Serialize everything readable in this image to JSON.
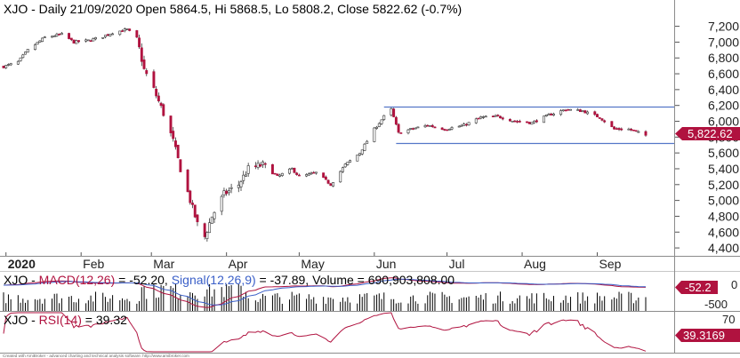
{
  "header": {
    "price_title": "XJO - Daily 21/09/2020 Open 5864.5, Hi 5868.5, Lo 5808.2, Close 5822.62 (-0.7%)",
    "macd_prefix": "XJO - ",
    "macd_label": "MACD(12,26)",
    "macd_value": " = -52.20, ",
    "signal_label": "Signal(12,26,9)",
    "signal_value": " = -37.89, Volume = 690,903,808.00",
    "rsi_prefix": "XJO - ",
    "rsi_label": "RSI(14)",
    "rsi_value": " = 39.32",
    "footer": "Created with AmiBroker - advanced charting and technical analysis software. http://www.amibroker.com"
  },
  "colors": {
    "down_candle": "#b0123f",
    "up_candle": "#ffffff",
    "wick": "#333333",
    "channel_line": "#5577c8",
    "price_badge": "#b0123f",
    "macd_line": "#b0123f",
    "signal_line": "#3a5fc8",
    "rsi_line": "#b0123f",
    "volume_bar": "#000000"
  },
  "chart_data": [
    {
      "type": "candlestick",
      "title": "XJO - Daily 21/09/2020 Open 5864.5, Hi 5868.5, Lo 5808.2, Close 5822.62 (-0.7%)",
      "x_labels": [
        "2020",
        "Feb",
        "Mar",
        "Apr",
        "May",
        "Jun",
        "Jul",
        "Aug",
        "Sep"
      ],
      "y_ticks": [
        "7,200",
        "7,000",
        "6,800",
        "6,600",
        "6,400",
        "6,200",
        "6,000",
        "5,800",
        "5,600",
        "5,400",
        "5,200",
        "5,000",
        "4,800",
        "4,600",
        "4,400"
      ],
      "y_tick_values": [
        7200,
        7000,
        6800,
        6600,
        6400,
        6200,
        6000,
        5800,
        5600,
        5400,
        5200,
        5000,
        4800,
        4600,
        4400
      ],
      "ylim": [
        4300,
        7330
      ],
      "last_price_label": "5,822.62",
      "last_close": 5822.62,
      "channel": {
        "upper": 6180,
        "lower": 5720,
        "start": "Jun",
        "end": "Sep"
      },
      "close_path": [
        [
          "2019-12-31",
          6690
        ],
        [
          "2020-01-06",
          6750
        ],
        [
          "2020-01-10",
          6900
        ],
        [
          "2020-01-17",
          7060
        ],
        [
          "2020-01-24",
          7100
        ],
        [
          "2020-01-29",
          7000
        ],
        [
          "2020-02-04",
          7020
        ],
        [
          "2020-02-10",
          7070
        ],
        [
          "2020-02-14",
          7120
        ],
        [
          "2020-02-20",
          7160
        ],
        [
          "2020-02-24",
          7050
        ],
        [
          "2020-02-27",
          6650
        ],
        [
          "2020-03-02",
          6400
        ],
        [
          "2020-03-06",
          6100
        ],
        [
          "2020-03-10",
          5750
        ],
        [
          "2020-03-13",
          5400
        ],
        [
          "2020-03-17",
          5000
        ],
        [
          "2020-03-20",
          4700
        ],
        [
          "2020-03-23",
          4540
        ],
        [
          "2020-03-26",
          4800
        ],
        [
          "2020-03-31",
          5080
        ],
        [
          "2020-04-06",
          5200
        ],
        [
          "2020-04-10",
          5400
        ],
        [
          "2020-04-16",
          5450
        ],
        [
          "2020-04-22",
          5300
        ],
        [
          "2020-04-28",
          5400
        ],
        [
          "2020-05-01",
          5300
        ],
        [
          "2020-05-08",
          5350
        ],
        [
          "2020-05-14",
          5200
        ],
        [
          "2020-05-20",
          5450
        ],
        [
          "2020-05-26",
          5600
        ],
        [
          "2020-06-01",
          5900
        ],
        [
          "2020-06-05",
          6060
        ],
        [
          "2020-06-08",
          6150
        ],
        [
          "2020-06-11",
          5850
        ],
        [
          "2020-06-16",
          5900
        ],
        [
          "2020-06-23",
          5950
        ],
        [
          "2020-06-30",
          5900
        ],
        [
          "2020-07-08",
          5950
        ],
        [
          "2020-07-15",
          6050
        ],
        [
          "2020-07-22",
          6060
        ],
        [
          "2020-07-29",
          6000
        ],
        [
          "2020-08-05",
          5980
        ],
        [
          "2020-08-12",
          6080
        ],
        [
          "2020-08-19",
          6150
        ],
        [
          "2020-08-26",
          6130
        ],
        [
          "2020-09-02",
          6050
        ],
        [
          "2020-09-08",
          5900
        ],
        [
          "2020-09-14",
          5900
        ],
        [
          "2020-09-21",
          5822.62
        ]
      ]
    },
    {
      "type": "bar+line",
      "title": "MACD(12,26) = -52.20, Signal(12,26,9) = -37.89, Volume = 690,903,808.00",
      "series": [
        {
          "name": "MACD(12,26)",
          "last": -52.2
        },
        {
          "name": "Signal(12,26,9)",
          "last": -37.89
        },
        {
          "name": "Volume",
          "last": 690903808.0
        }
      ],
      "y_ticks": [
        "0",
        "-500"
      ],
      "y_tick_values": [
        0,
        -500
      ],
      "value_label": "-52.2"
    },
    {
      "type": "line",
      "title": "RSI(14) = 39.32",
      "series": [
        {
          "name": "RSI(14)",
          "last": 39.32
        }
      ],
      "y_ticks": [
        "70"
      ],
      "y_tick_values": [
        70
      ],
      "value_label": "39.3169"
    }
  ]
}
